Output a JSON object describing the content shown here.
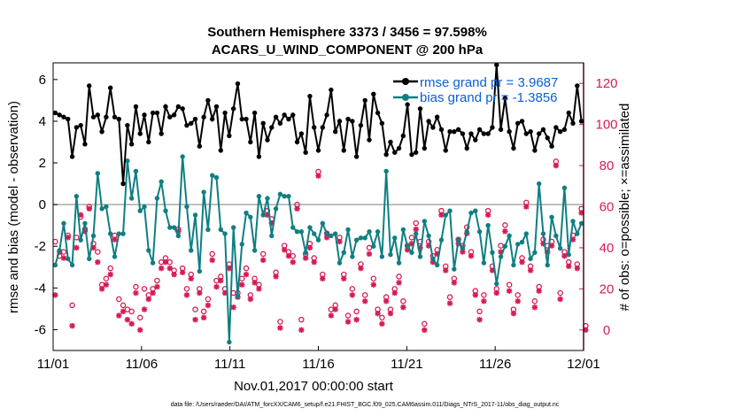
{
  "chart_data": {
    "type": "line",
    "title_line1": "Southern Hemisphere 3373 / 3456 = 97.598%",
    "title_line2": "ACARS_U_WIND_COMPONENT @ 200 hPa",
    "xlabel": "Nov.01,2017 00:00:00 start",
    "ylabel_left": "rmse and bias (model - observation)",
    "ylabel_right": "# of obs: o=possible; ×=assimilated",
    "footer": "data file: /Users/raeder/DAI/ATM_forcXX/CAM6_setup/f.e21.FHIST_BGC.f09_025.CAM6assim.011/Diags_NTrS_2017-11/obs_diag_output.nc",
    "x_ticks": [
      "11/01",
      "11/06",
      "11/11",
      "11/16",
      "11/21",
      "11/26",
      "12/01"
    ],
    "x_range_days": [
      0,
      30
    ],
    "ylim_left": [
      -7,
      6.8
    ],
    "yticks_left": [
      "6",
      "4",
      "2",
      "0",
      "-2",
      "-4",
      "-6"
    ],
    "ylim_right": [
      -10,
      130
    ],
    "yticks_right": [
      "120",
      "100",
      "80",
      "60",
      "40",
      "20",
      "0"
    ],
    "colors": {
      "rmse": "#000000",
      "bias": "#0f7f82",
      "obs": "#d81b55",
      "right_axis": "#d81b55",
      "zero_line": "#aaaaaa",
      "legend_text": "#0a5fd6"
    },
    "series": [
      {
        "name": "rmse grand pr = 3.9687",
        "key": "rmse",
        "values": [
          4.4,
          4.3,
          4.2,
          4.1,
          2.3,
          3.7,
          3.8,
          2.9,
          5.7,
          4.2,
          4.3,
          3.5,
          4.2,
          5.6,
          4.2,
          4.1,
          1.0,
          3.8,
          2.9,
          4.7,
          3.4,
          4.3,
          3.0,
          4.4,
          4.4,
          3.4,
          4.7,
          4.2,
          4.3,
          4.7,
          4.6,
          3.8,
          3.9,
          4.1,
          2.8,
          4.2,
          5.0,
          4.1,
          4.7,
          2.6,
          4.4,
          3.3,
          4.6,
          5.8,
          4.1,
          4.1,
          3.0,
          4.4,
          2.3,
          3.9,
          3.1,
          3.7,
          4.2,
          3.9,
          4.3,
          4.1,
          4.3,
          3.0,
          3.4,
          2.5,
          5.2,
          3.7,
          2.6,
          3.7,
          4.3,
          5.5,
          3.5,
          4.0,
          2.6,
          4.1,
          4.0,
          2.3,
          3.8,
          5.0,
          3.1,
          5.3,
          4.4,
          3.9,
          2.4,
          3.0,
          2.5,
          2.7,
          3.3,
          4.8,
          2.4,
          2.5,
          4.6,
          2.7,
          4.0,
          3.7,
          4.2,
          3.6,
          2.6,
          3.5,
          3.5,
          3.6,
          3.4,
          2.7,
          3.4,
          3.1,
          3.6,
          3.4,
          3.4,
          3.7,
          6.7,
          3.6,
          5.1,
          3.5,
          2.7,
          3.9,
          4.0,
          3.4,
          3.5,
          2.6,
          3.4,
          3.6,
          3.2,
          2.8,
          3.7,
          3.5,
          3.6,
          4.4,
          3.9,
          5.7,
          4.0
        ],
        "bias": [
          -2.9,
          -2.2,
          -0.9,
          -2.6,
          -2.9,
          0.4,
          -1.7,
          -0.9,
          -2.6,
          -1.5,
          1.5,
          -0.2,
          -0.1,
          -1.4,
          -2.5,
          -1.4,
          -1.4,
          2.1,
          0.3,
          1.6,
          -0.3,
          -0.1,
          -2.2,
          -2.8,
          0.3,
          1.1,
          -0.3,
          -1.1,
          -1.1,
          -1.5,
          2.3,
          -0.1,
          -2.2,
          -0.5,
          -3.2,
          0.6,
          -1.2,
          1.4,
          1.3,
          -1.2,
          -1.4,
          -6.6,
          -1.1,
          -4.4,
          -1.9,
          -0.4,
          -0.6,
          -2.2,
          0.4,
          -0.5,
          0.3,
          -1.5,
          -0.2,
          0.5,
          0.4,
          0.4,
          -1.1,
          -1.3,
          -1.3,
          -2.3,
          -1.1,
          -1.4,
          -1.7,
          -0.9,
          -1.4,
          -1.5,
          -1.4,
          -2.8,
          -2.3,
          -1.2,
          -2.5,
          -1.7,
          -1.6,
          -1.6,
          -1.3,
          -2.0,
          -1.3,
          -2.5,
          1.6,
          -2.4,
          -1.6,
          -2.8,
          -1.2,
          -2.0,
          -2.3,
          -1.4,
          -2.5,
          -0.8,
          -1.5,
          -2.6,
          -2.9,
          -1.7,
          -0.5,
          -0.3,
          -3.1,
          -1.7,
          -2.1,
          -1.3,
          -0.4,
          -0.3,
          -1.3,
          -2.8,
          -1.0,
          -2.3,
          -3.8,
          -2.5,
          -2.0,
          -1.5,
          -2.9,
          -1.9,
          -1.8,
          -1.4,
          -2.6,
          -2.3,
          1.0,
          -1.4,
          -2.9,
          -0.6,
          -1.5,
          -2.1,
          0.8,
          -2.4,
          -0.8,
          -1.4,
          -0.9
        ],
        "name_bias": "bias grand pr = -1.3856"
      }
    ],
    "obs_assimilated": [
      17,
      38,
      35,
      45,
      2,
      40,
      56,
      48,
      59,
      40,
      33,
      20,
      22,
      27,
      44,
      7,
      9,
      5,
      3,
      18,
      0,
      10,
      15,
      18,
      21,
      30,
      33,
      30,
      27,
      48,
      28,
      17,
      25,
      5,
      18,
      6,
      12,
      34,
      21,
      24,
      18,
      30,
      11,
      16,
      22,
      27,
      15,
      23,
      20,
      34,
      56,
      52,
      26,
      1,
      39,
      36,
      33,
      59,
      0,
      35,
      40,
      33,
      75,
      25,
      45,
      7,
      10,
      43,
      25,
      4,
      17,
      5,
      30,
      14,
      37,
      22,
      8,
      3,
      14,
      8,
      18,
      23,
      11,
      39,
      42,
      49,
      40,
      0,
      41,
      33,
      37,
      56,
      29,
      13,
      23,
      42,
      38,
      47,
      36,
      17,
      5,
      14,
      56,
      29,
      18,
      38,
      48,
      19,
      8,
      14,
      33,
      60,
      29,
      11,
      19,
      42,
      38,
      41,
      80,
      15,
      36,
      31,
      44,
      30,
      57,
      0
    ],
    "obs_possible": [
      43,
      36,
      38,
      46,
      12,
      45,
      55,
      49,
      60,
      42,
      38,
      22,
      25,
      30,
      46,
      15,
      12,
      10,
      9,
      21,
      6,
      20,
      17,
      20,
      24,
      33,
      35,
      33,
      29,
      49,
      30,
      20,
      27,
      10,
      20,
      9,
      15,
      37,
      24,
      26,
      20,
      32,
      18,
      18,
      25,
      30,
      17,
      25,
      22,
      37,
      58,
      54,
      28,
      4,
      41,
      38,
      36,
      61,
      5,
      37,
      42,
      35,
      77,
      27,
      47,
      10,
      12,
      45,
      27,
      7,
      20,
      9,
      32,
      17,
      40,
      25,
      10,
      6,
      16,
      10,
      20,
      26,
      14,
      41,
      45,
      52,
      43,
      3,
      43,
      36,
      39,
      58,
      31,
      16,
      25,
      44,
      41,
      50,
      38,
      19,
      9,
      17,
      58,
      31,
      20,
      41,
      51,
      22,
      10,
      17,
      35,
      62,
      31,
      14,
      21,
      44,
      41,
      43,
      82,
      18,
      38,
      33,
      46,
      32,
      59,
      2
    ]
  }
}
